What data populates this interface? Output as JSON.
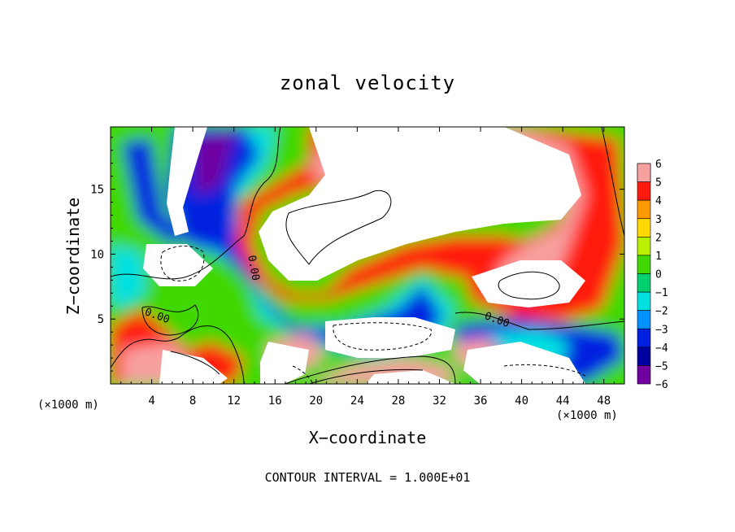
{
  "chart_data": {
    "type": "heatmap",
    "title": "zonal velocity",
    "xlabel": "X−coordinate",
    "ylabel": "Z−coordinate",
    "x_unit": "(×1000 m)",
    "xlim": [
      0,
      50
    ],
    "ylim": [
      0,
      19.8
    ],
    "x_ticks": [
      4,
      8,
      12,
      16,
      20,
      24,
      28,
      32,
      36,
      40,
      44,
      48
    ],
    "y_ticks": [
      5,
      10,
      15
    ],
    "colorbar": {
      "levels": [
        6,
        5,
        4,
        3,
        2,
        1,
        0,
        -1,
        -2,
        -3,
        -4,
        -5,
        -6
      ],
      "colors": [
        "#f7a0a0",
        "#ff5060",
        "#ff1a10",
        "#ff9a00",
        "#ffd800",
        "#b8f000",
        "#40d800",
        "#00d070",
        "#00e0e0",
        "#0090ff",
        "#0020e0",
        "#0000a0",
        "#7000a0"
      ]
    },
    "contour_labels": [
      "0.00",
      "0.00",
      "0.00"
    ],
    "footer": "CONTOUR INTERVAL = 1.000E+01"
  }
}
